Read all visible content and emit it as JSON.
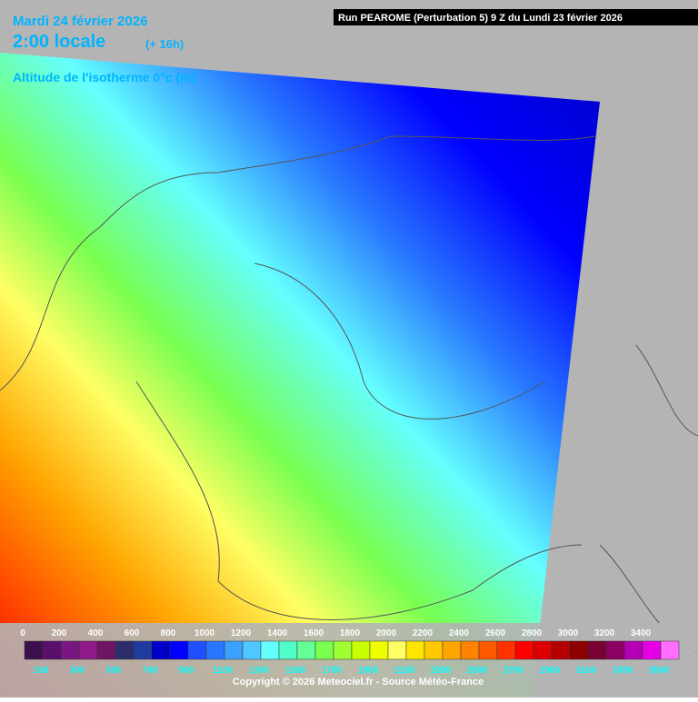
{
  "header": {
    "date": "Mardi 24 février 2026",
    "time": "2:00 locale",
    "lead": "(+ 16h)",
    "parameter": "Altitude de l'isotherme 0°c (m)",
    "run": "Run PEAROME (Perturbation 5) 9 Z du Lundi 23 février 2026"
  },
  "legend": {
    "labels": [
      0,
      100,
      200,
      300,
      400,
      500,
      600,
      700,
      800,
      900,
      1000,
      1100,
      1200,
      1300,
      1400,
      1500,
      1600,
      1700,
      1800,
      1900,
      2000,
      2100,
      2200,
      2300,
      2400,
      2500,
      2600,
      2700,
      2800,
      2900,
      3000,
      3100,
      3200,
      3300,
      3400,
      3500
    ],
    "colors": [
      "#3c0f4f",
      "#5a0f6e",
      "#7a1682",
      "#8e1a8a",
      "#6e1464",
      "#2d2d6e",
      "#1e3ca0",
      "#0000c8",
      "#0000ff",
      "#1e50ff",
      "#2878ff",
      "#3ca0ff",
      "#50c8ff",
      "#64ffff",
      "#50ffc8",
      "#64ff96",
      "#78ff50",
      "#a0ff32",
      "#c8ff00",
      "#f0ff00",
      "#ffff64",
      "#ffe600",
      "#ffc800",
      "#ffa500",
      "#ff8200",
      "#ff5a00",
      "#ff3200",
      "#ff0000",
      "#dc0000",
      "#b40000",
      "#8c0000",
      "#780032",
      "#8c0064",
      "#b400b4",
      "#e600e6",
      "#ff6eff"
    ]
  },
  "footer": {
    "copyright": "Copyright © 2026 Meteociel.fr - Source Météo-France"
  }
}
